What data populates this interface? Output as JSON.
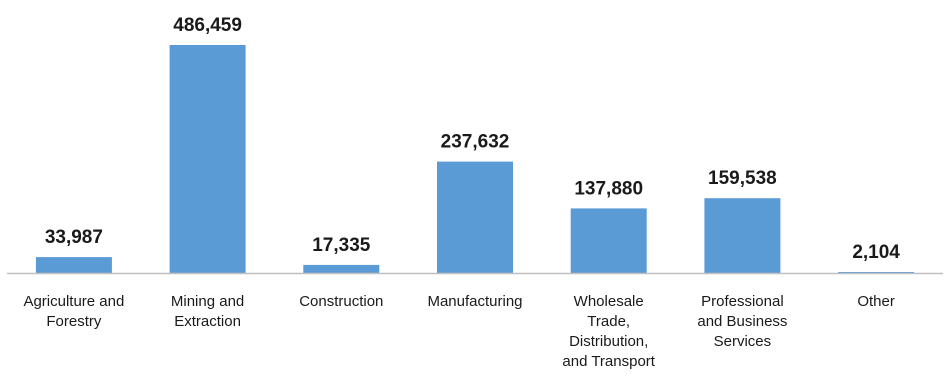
{
  "chart_data": {
    "type": "bar",
    "categories": [
      "Agriculture and Forestry",
      "Mining and Extraction",
      "Construction",
      "Manufacturing",
      "Wholesale Trade, Distribution, and Transport",
      "Professional and Business Services",
      "Other"
    ],
    "category_lines": [
      [
        "Agriculture and",
        "Forestry"
      ],
      [
        "Mining and",
        "Extraction"
      ],
      [
        "Construction"
      ],
      [
        "Manufacturing"
      ],
      [
        "Wholesale",
        "Trade,",
        "Distribution,",
        "and Transport"
      ],
      [
        "Professional",
        "and Business",
        "Services"
      ],
      [
        "Other"
      ]
    ],
    "values": [
      33987,
      486459,
      17335,
      237632,
      137880,
      159538,
      2104
    ],
    "value_labels": [
      "33,987",
      "486,459",
      "17,335",
      "237,632",
      "137,880",
      "159,538",
      "2,104"
    ],
    "title": "",
    "xlabel": "",
    "ylabel": "",
    "ylim": [
      0,
      486459
    ],
    "grid": false,
    "legend": "none",
    "bar_color": "#5b9bd5",
    "axis_color": "#bfbfbf"
  }
}
